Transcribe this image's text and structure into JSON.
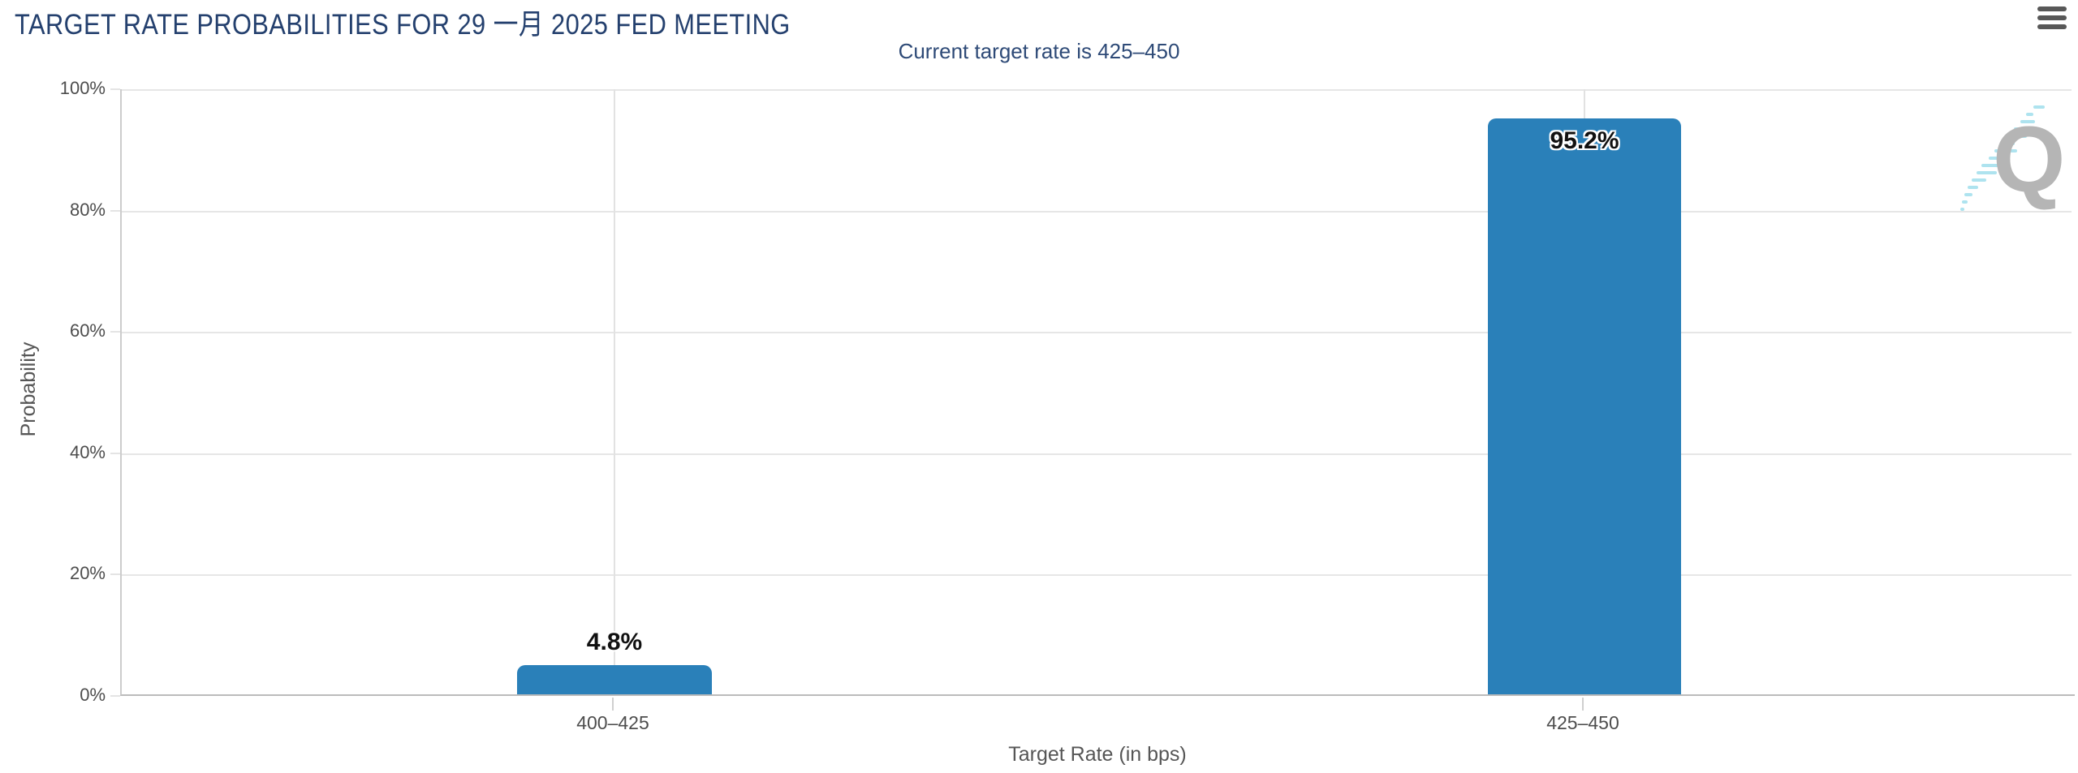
{
  "chart_data": {
    "type": "bar",
    "title": "TARGET RATE PROBABILITIES FOR 29 一月 2025 FED MEETING",
    "subtitle": "Current target rate is 425–450",
    "categories": [
      "400–425",
      "425–450"
    ],
    "values": [
      4.8,
      95.2
    ],
    "value_labels": [
      "4.8%",
      "95.2%"
    ],
    "xlabel": "Target Rate (in bps)",
    "ylabel": "Probability",
    "ylim": [
      0,
      100
    ],
    "ytick_labels": [
      "100%",
      "80%",
      "60%",
      "40%",
      "20%",
      "0%"
    ],
    "grid": true,
    "legend": "none",
    "bar_color": "#2a80b9",
    "label_color": "#111111",
    "title_color": "#24406e"
  },
  "icons": {
    "menu": "hamburger-menu-icon",
    "watermark_letter": "Q"
  }
}
